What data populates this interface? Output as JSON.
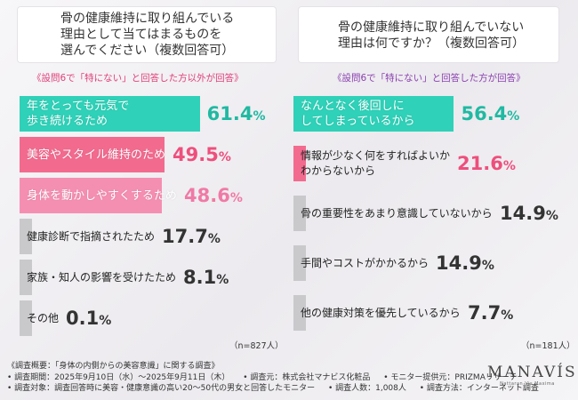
{
  "left_question": {
    "lines": [
      "骨の健康維持に取り組んでいる",
      "理由として当てはまるものを",
      "選んでください（複数回答可）"
    ],
    "condition": "《設問6で「特にない」と回答した方以外が回答》",
    "n_label": "（n=827人）"
  },
  "right_question": {
    "lines": [
      "骨の健康維持に取り組んでいない",
      "理由は何ですか？（複数回答可）"
    ],
    "condition": "《設問6で「特にない」と回答した方が回答》",
    "n_label": "（n=181人）"
  },
  "chart_data": [
    {
      "type": "bar",
      "orientation": "horizontal",
      "categories": [
        "年をとっても元気で歩き続けるため",
        "美容やスタイル維持のため",
        "身体を動かしやすくするため",
        "健康診断で指摘されたため",
        "家族・知人の影響を受けたため",
        "その他"
      ],
      "label_lines": [
        [
          "年をとっても元気で",
          "歩き続けるため"
        ],
        [
          "美容やスタイル維持のため"
        ],
        [
          "身体を動かしやすくするため"
        ],
        [
          "健康診断で指摘されたため"
        ],
        [
          "家族・知人の影響を受けたため"
        ],
        [
          "その他"
        ]
      ],
      "values": [
        61.4,
        49.5,
        48.6,
        17.7,
        8.1,
        0.1
      ],
      "value_labels": [
        [
          "61.",
          "4",
          "%"
        ],
        [
          "49.",
          "5",
          "%"
        ],
        [
          "48.",
          "6",
          "%"
        ],
        [
          "17.",
          "7",
          "%"
        ],
        [
          "8.",
          "1",
          "%"
        ],
        [
          "0.",
          "1",
          "%"
        ]
      ],
      "bar_colors": [
        "#2fd1b8",
        "#f26b8f",
        "#f58fb2",
        "#c9c9cc",
        "#c9c9cc",
        "#c9c9cc"
      ],
      "value_colors": [
        "#20b9a2",
        "#ee4f7d",
        "#f07aa5",
        "#333333",
        "#333333",
        "#333333"
      ],
      "label_light": [
        true,
        true,
        true,
        false,
        false,
        false
      ],
      "xlim": [
        0,
        100
      ]
    },
    {
      "type": "bar",
      "orientation": "horizontal",
      "categories": [
        "なんとなく後回しにしてしまっているから",
        "情報が少なく何をすればよいかわからないから",
        "骨の重要性をあまり意識していないから",
        "手間やコストがかかるから",
        "他の健康対策を優先しているから"
      ],
      "label_lines": [
        [
          "なんとなく後回しに",
          "してしまっているから"
        ],
        [
          "情報が少なく何をすればよいか",
          "わからないから"
        ],
        [
          "骨の重要性をあまり意識していないから"
        ],
        [
          "手間やコストがかかるから"
        ],
        [
          "他の健康対策を優先しているから"
        ]
      ],
      "values": [
        56.4,
        21.6,
        14.9,
        14.9,
        7.7
      ],
      "value_labels": [
        [
          "56.",
          "4",
          "%"
        ],
        [
          "21.",
          "6",
          "%"
        ],
        [
          "14.",
          "9",
          "%"
        ],
        [
          "14.",
          "9",
          "%"
        ],
        [
          "7.",
          "7",
          "%"
        ]
      ],
      "bar_colors": [
        "#2fd1b8",
        "#f26b8f",
        "#c9c9cc",
        "#c9c9cc",
        "#c9c9cc"
      ],
      "value_colors": [
        "#20b9a2",
        "#ee4f7d",
        "#333333",
        "#333333",
        "#333333"
      ],
      "label_light": [
        true,
        false,
        false,
        false,
        false
      ],
      "xlim": [
        0,
        100
      ]
    }
  ],
  "footer": {
    "title": "《調査概要：「身体の内側からの美容意識」に関する調査》",
    "row1": [
      "• 調査期間：2025年9月10日（水）～2025年9月11日（木）",
      "• 調査元：株式会社マナビス化粧品",
      "• モニター提供元：PRIZMAリサーチ"
    ],
    "row2": [
      "• 調査対象：調査回答時に美容・健康意識の高い20～50代の男女と回答したモニター",
      "• 調査人数：1,008人",
      "• 調査方法：インターネット調査"
    ]
  },
  "logo": {
    "name": "MANAVÍS",
    "tagline": "Nattaran Vis Maxima"
  }
}
